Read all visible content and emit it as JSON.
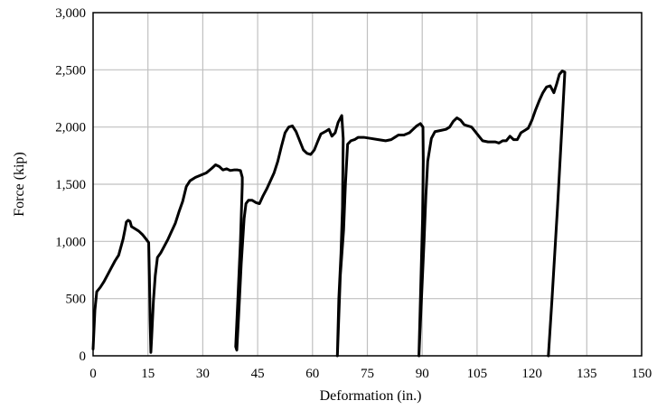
{
  "chart_data": {
    "type": "line",
    "title": "",
    "xlabel": "Deformation (in.)",
    "ylabel": "Force (kip)",
    "xlim": [
      0,
      150
    ],
    "ylim": [
      0,
      3000
    ],
    "x_ticks": [
      0,
      15,
      30,
      45,
      60,
      75,
      90,
      105,
      120,
      135,
      150
    ],
    "y_ticks": [
      0,
      500,
      1000,
      1500,
      2000,
      2500,
      3000
    ],
    "x_tick_labels": [
      "0",
      "15",
      "30",
      "45",
      "60",
      "75",
      "90",
      "105",
      "120",
      "135",
      "150"
    ],
    "y_tick_labels": [
      "0",
      "500",
      "1,000",
      "1,500",
      "2,000",
      "2,500",
      "3,000"
    ],
    "grid": true,
    "legend": "none",
    "line_color": "#000000",
    "grid_color": "#c0c0c0",
    "series": [
      {
        "points": [
          [
            0,
            60
          ],
          [
            0.5,
            400
          ],
          [
            1,
            560
          ],
          [
            2,
            600
          ],
          [
            3,
            650
          ],
          [
            4,
            710
          ],
          [
            5,
            770
          ],
          [
            6,
            830
          ],
          [
            7,
            880
          ],
          [
            7.6,
            950
          ],
          [
            8.2,
            1020
          ],
          [
            8.7,
            1100
          ],
          [
            9.1,
            1170
          ],
          [
            9.6,
            1185
          ],
          [
            10.1,
            1175
          ],
          [
            10.5,
            1130
          ],
          [
            11.5,
            1110
          ],
          [
            12.5,
            1090
          ],
          [
            13.5,
            1060
          ],
          [
            14.5,
            1020
          ],
          [
            15.2,
            990
          ],
          [
            15.4,
            700
          ],
          [
            15.6,
            300
          ],
          [
            15.8,
            30
          ],
          [
            16,
            150
          ],
          [
            16.5,
            480
          ],
          [
            17,
            700
          ],
          [
            17.6,
            860
          ],
          [
            18.5,
            900
          ],
          [
            19.5,
            960
          ],
          [
            20.5,
            1020
          ],
          [
            21.5,
            1090
          ],
          [
            22.5,
            1160
          ],
          [
            23.5,
            1260
          ],
          [
            24.5,
            1350
          ],
          [
            25.5,
            1480
          ],
          [
            26.5,
            1530
          ],
          [
            28,
            1560
          ],
          [
            29.5,
            1580
          ],
          [
            31,
            1600
          ],
          [
            32.5,
            1640
          ],
          [
            33.5,
            1670
          ],
          [
            34.5,
            1655
          ],
          [
            35.5,
            1625
          ],
          [
            36.5,
            1635
          ],
          [
            37.5,
            1620
          ],
          [
            38.5,
            1625
          ],
          [
            39.5,
            1625
          ],
          [
            40.3,
            1620
          ],
          [
            40.8,
            1560
          ],
          [
            40.8,
            1500
          ],
          [
            40.3,
            1000
          ],
          [
            39.6,
            500
          ],
          [
            39,
            80
          ],
          [
            39.3,
            50
          ],
          [
            39.8,
            350
          ],
          [
            40.5,
            800
          ],
          [
            41.3,
            1200
          ],
          [
            41.8,
            1330
          ],
          [
            42.5,
            1360
          ],
          [
            43.5,
            1360
          ],
          [
            44.5,
            1340
          ],
          [
            45.5,
            1330
          ],
          [
            46.5,
            1400
          ],
          [
            47.5,
            1460
          ],
          [
            48.5,
            1530
          ],
          [
            49.5,
            1600
          ],
          [
            50.5,
            1700
          ],
          [
            51.5,
            1830
          ],
          [
            52.5,
            1950
          ],
          [
            53.5,
            2000
          ],
          [
            54.5,
            2010
          ],
          [
            55.5,
            1960
          ],
          [
            56.5,
            1880
          ],
          [
            57.5,
            1800
          ],
          [
            58.5,
            1770
          ],
          [
            59.5,
            1760
          ],
          [
            60.5,
            1800
          ],
          [
            61.5,
            1880
          ],
          [
            62.3,
            1940
          ],
          [
            63.5,
            1960
          ],
          [
            64.5,
            1980
          ],
          [
            65.3,
            1920
          ],
          [
            66.2,
            1950
          ],
          [
            67,
            2040
          ],
          [
            68,
            2100
          ],
          [
            68.4,
            1900
          ],
          [
            68.2,
            1300
          ],
          [
            67.8,
            900
          ],
          [
            67.2,
            500
          ],
          [
            66.8,
            0
          ],
          [
            67.6,
            700
          ],
          [
            68.5,
            1100
          ],
          [
            69,
            1500
          ],
          [
            69.6,
            1850
          ],
          [
            70.5,
            1880
          ],
          [
            71.5,
            1890
          ],
          [
            72.5,
            1910
          ],
          [
            74,
            1910
          ],
          [
            76,
            1900
          ],
          [
            78,
            1890
          ],
          [
            80,
            1880
          ],
          [
            81.5,
            1890
          ],
          [
            82.5,
            1910
          ],
          [
            83.5,
            1930
          ],
          [
            85,
            1930
          ],
          [
            86.5,
            1950
          ],
          [
            87.5,
            1980
          ],
          [
            88.5,
            2010
          ],
          [
            89.5,
            2030
          ],
          [
            90.2,
            2000
          ],
          [
            90.3,
            1700
          ],
          [
            90.1,
            1200
          ],
          [
            89.6,
            600
          ],
          [
            89.1,
            0
          ],
          [
            89.8,
            500
          ],
          [
            90.5,
            1000
          ],
          [
            91,
            1400
          ],
          [
            91.5,
            1700
          ],
          [
            92.5,
            1900
          ],
          [
            93.5,
            1960
          ],
          [
            95,
            1970
          ],
          [
            96.5,
            1980
          ],
          [
            97.5,
            2000
          ],
          [
            98.5,
            2050
          ],
          [
            99.5,
            2080
          ],
          [
            100.5,
            2060
          ],
          [
            101.5,
            2020
          ],
          [
            102.5,
            2010
          ],
          [
            103.5,
            2000
          ],
          [
            104.5,
            1960
          ],
          [
            105.5,
            1920
          ],
          [
            106.5,
            1880
          ],
          [
            108,
            1870
          ],
          [
            110,
            1870
          ],
          [
            111,
            1860
          ],
          [
            112,
            1880
          ],
          [
            113,
            1880
          ],
          [
            114,
            1920
          ],
          [
            115,
            1890
          ],
          [
            116,
            1890
          ],
          [
            117,
            1950
          ],
          [
            118,
            1970
          ],
          [
            119,
            1990
          ],
          [
            120,
            2060
          ],
          [
            121,
            2150
          ],
          [
            122,
            2230
          ],
          [
            123,
            2300
          ],
          [
            124,
            2350
          ],
          [
            125,
            2360
          ],
          [
            126,
            2300
          ],
          [
            126.8,
            2380
          ],
          [
            127.5,
            2460
          ],
          [
            128.3,
            2490
          ],
          [
            129,
            2480
          ],
          [
            128.2,
            2000
          ],
          [
            127,
            1300
          ],
          [
            125.5,
            500
          ],
          [
            124.5,
            0
          ]
        ]
      }
    ]
  }
}
